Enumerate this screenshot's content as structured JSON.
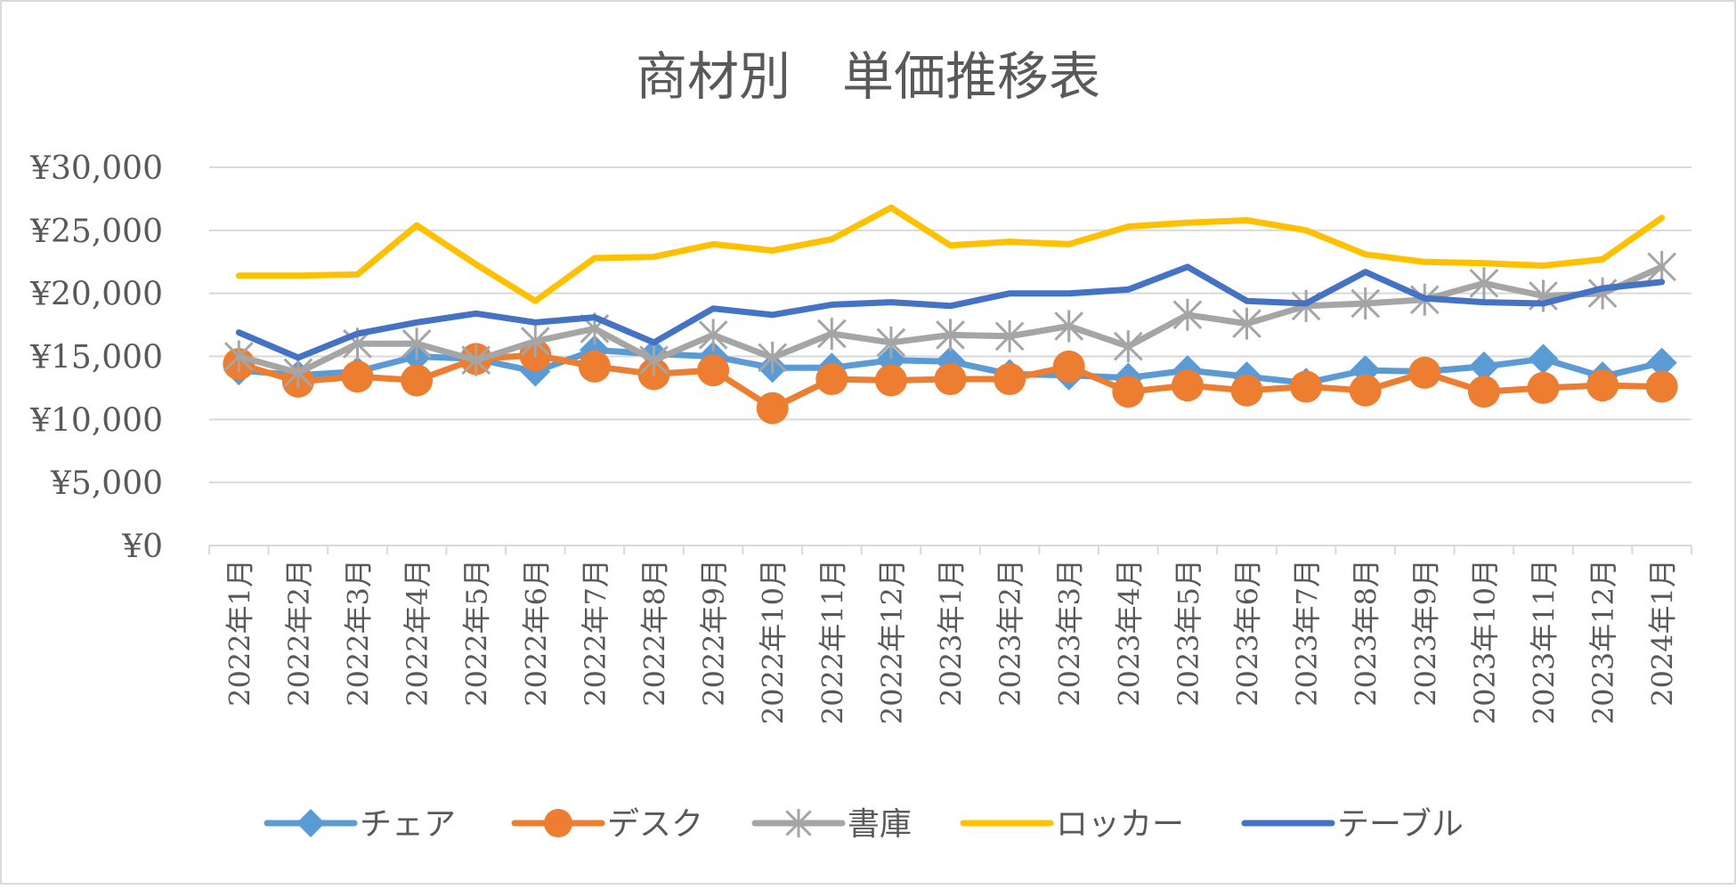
{
  "chart_data": {
    "type": "line",
    "title": "商材別　単価推移表",
    "xlabel": "",
    "ylabel": "",
    "ylim": [
      0,
      30000
    ],
    "yticks": [
      0,
      5000,
      10000,
      15000,
      20000,
      25000,
      30000
    ],
    "ytick_labels": [
      "¥0",
      "¥5,000",
      "¥10,000",
      "¥15,000",
      "¥20,000",
      "¥25,000",
      "¥30,000"
    ],
    "grid": true,
    "legend_position": "bottom",
    "categories": [
      "2022年1月",
      "2022年2月",
      "2022年3月",
      "2022年4月",
      "2022年5月",
      "2022年6月",
      "2022年7月",
      "2022年8月",
      "2022年9月",
      "2022年10月",
      "2022年11月",
      "2022年12月",
      "2023年1月",
      "2023年2月",
      "2023年3月",
      "2023年4月",
      "2023年5月",
      "2023年6月",
      "2023年7月",
      "2023年8月",
      "2023年9月",
      "2023年10月",
      "2023年11月",
      "2023年12月",
      "2024年1月"
    ],
    "series": [
      {
        "name": "チェア",
        "color": "#5B9BD5",
        "marker": "diamond",
        "values": [
          13900,
          13500,
          13800,
          15000,
          14800,
          13800,
          15500,
          15200,
          15000,
          14100,
          14100,
          14700,
          14600,
          13600,
          13500,
          13300,
          13900,
          13400,
          12900,
          13900,
          13800,
          14200,
          14800,
          13400,
          14500
        ]
      },
      {
        "name": "デスク",
        "color": "#ED7D31",
        "marker": "circle",
        "values": [
          14400,
          13000,
          13400,
          13100,
          14800,
          15100,
          14200,
          13600,
          13900,
          10900,
          13200,
          13100,
          13200,
          13200,
          14200,
          12200,
          12700,
          12300,
          12600,
          12300,
          13700,
          12200,
          12500,
          12700,
          12600
        ]
      },
      {
        "name": "書庫",
        "color": "#A5A5A5",
        "marker": "star",
        "values": [
          15000,
          13700,
          16000,
          16000,
          14700,
          16200,
          17200,
          14700,
          16700,
          14900,
          16800,
          16100,
          16700,
          16600,
          17400,
          15800,
          18300,
          17600,
          19000,
          19200,
          19500,
          20800,
          19800,
          20000,
          22100
        ]
      },
      {
        "name": "ロッカー",
        "color": "#FFC000",
        "marker": "none",
        "values": [
          21400,
          21400,
          21500,
          25400,
          22300,
          19400,
          22800,
          22900,
          23900,
          23400,
          24300,
          26800,
          23800,
          24100,
          23900,
          25300,
          25600,
          25800,
          25000,
          23100,
          22500,
          22400,
          22200,
          22700,
          26000
        ]
      },
      {
        "name": "テーブル",
        "color": "#4472C4",
        "marker": "none",
        "values": [
          16900,
          14900,
          16800,
          17700,
          18400,
          17700,
          18100,
          16100,
          18800,
          18300,
          19100,
          19300,
          19000,
          20000,
          20000,
          20300,
          22100,
          19400,
          19200,
          21700,
          19600,
          19300,
          19200,
          20400,
          20900
        ]
      }
    ]
  }
}
